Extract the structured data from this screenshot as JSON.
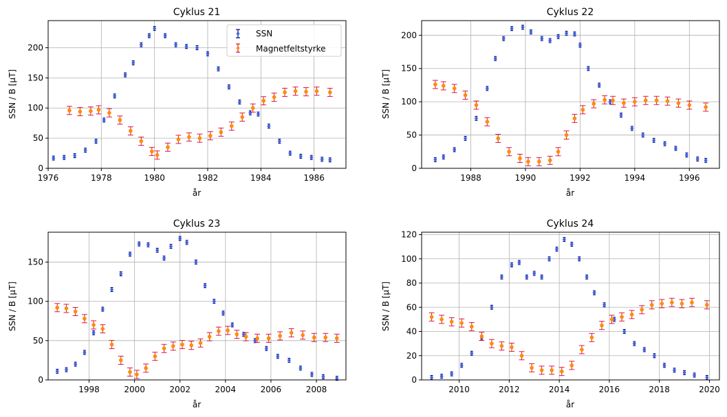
{
  "colors": {
    "ssn": "#4169e1",
    "ssn_err": "#000080",
    "mag": "#ff8c00",
    "mag_err": "#dc143c",
    "grid": "#b0b0b0"
  },
  "legend": {
    "placement": "top-right",
    "entries": [
      "SSN",
      "Magnetfeltstyrke"
    ]
  },
  "chart_data": [
    {
      "type": "scatter",
      "title": "Cyklus 21",
      "xlabel": "år",
      "ylabel": "SSN / B [μT]",
      "xlim": [
        1976.0,
        1987.2
      ],
      "ylim": [
        0,
        245
      ],
      "xticks": [
        1976,
        1978,
        1980,
        1982,
        1984,
        1986
      ],
      "yticks": [
        0,
        50,
        100,
        150,
        200
      ],
      "grid": true,
      "legend": true,
      "series": [
        {
          "name": "SSN",
          "key": "ssn",
          "x": [
            1976.2,
            1976.6,
            1977.0,
            1977.4,
            1977.8,
            1978.1,
            1978.5,
            1978.9,
            1979.2,
            1979.5,
            1979.8,
            1980.0,
            1980.4,
            1980.8,
            1981.2,
            1981.6,
            1982.0,
            1982.4,
            1982.8,
            1983.2,
            1983.6,
            1983.9,
            1984.3,
            1984.7,
            1985.1,
            1985.5,
            1985.9,
            1986.3,
            1986.6
          ],
          "y": [
            17,
            18,
            21,
            30,
            45,
            80,
            120,
            155,
            175,
            205,
            220,
            232,
            220,
            205,
            202,
            200,
            190,
            165,
            135,
            110,
            92,
            90,
            70,
            45,
            25,
            20,
            18,
            15,
            14
          ]
        },
        {
          "name": "Magnetfeltstyrke",
          "key": "mag",
          "x": [
            1976.8,
            1977.2,
            1977.6,
            1977.9,
            1978.3,
            1978.7,
            1979.1,
            1979.5,
            1979.9,
            1980.1,
            1980.5,
            1980.9,
            1981.3,
            1981.7,
            1982.1,
            1982.5,
            1982.9,
            1983.3,
            1983.7,
            1984.1,
            1984.5,
            1984.9,
            1985.3,
            1985.7,
            1986.1,
            1986.6
          ],
          "y": [
            96,
            94,
            95,
            97,
            92,
            80,
            62,
            45,
            28,
            22,
            35,
            48,
            52,
            50,
            54,
            60,
            70,
            85,
            100,
            112,
            118,
            126,
            128,
            127,
            128,
            126
          ]
        }
      ]
    },
    {
      "type": "scatter",
      "title": "Cyklus 22",
      "xlabel": "år",
      "ylabel": "SSN / B [μT]",
      "xlim": [
        1986.2,
        1997.1
      ],
      "ylim": [
        0,
        222
      ],
      "xticks": [
        1988,
        1990,
        1992,
        1994,
        1996
      ],
      "yticks": [
        0,
        50,
        100,
        150,
        200
      ],
      "grid": true,
      "legend": false,
      "series": [
        {
          "name": "SSN",
          "key": "ssn",
          "x": [
            1986.7,
            1987.0,
            1987.4,
            1987.8,
            1988.2,
            1988.6,
            1988.9,
            1989.2,
            1989.5,
            1989.9,
            1990.2,
            1990.6,
            1990.9,
            1991.2,
            1991.5,
            1991.8,
            1992.0,
            1992.3,
            1992.7,
            1993.1,
            1993.5,
            1993.9,
            1994.3,
            1994.7,
            1995.1,
            1995.5,
            1995.9,
            1996.3,
            1996.6
          ],
          "y": [
            13,
            17,
            28,
            45,
            75,
            120,
            165,
            195,
            210,
            212,
            205,
            195,
            192,
            198,
            203,
            202,
            185,
            150,
            125,
            100,
            80,
            60,
            50,
            42,
            37,
            30,
            20,
            14,
            12
          ]
        },
        {
          "name": "Magnetfeltstyrke",
          "key": "mag",
          "x": [
            1986.7,
            1987.0,
            1987.4,
            1987.8,
            1988.2,
            1988.6,
            1989.0,
            1989.4,
            1989.8,
            1990.1,
            1990.5,
            1990.9,
            1991.2,
            1991.5,
            1991.8,
            1992.1,
            1992.5,
            1992.9,
            1993.2,
            1993.6,
            1994.0,
            1994.4,
            1994.8,
            1995.2,
            1995.6,
            1996.0,
            1996.6
          ],
          "y": [
            126,
            124,
            120,
            110,
            95,
            70,
            45,
            25,
            15,
            10,
            10,
            12,
            25,
            50,
            75,
            88,
            97,
            103,
            102,
            98,
            100,
            102,
            102,
            101,
            98,
            95,
            92
          ]
        }
      ]
    },
    {
      "type": "scatter",
      "title": "Cyklus 23",
      "xlabel": "år",
      "ylabel": "SSN / B [μT]",
      "xlim": [
        1996.2,
        2009.3
      ],
      "ylim": [
        0,
        188
      ],
      "xticks": [
        1998,
        2000,
        2002,
        2004,
        2006,
        2008
      ],
      "yticks": [
        0,
        50,
        100,
        150
      ],
      "grid": true,
      "legend": false,
      "series": [
        {
          "name": "SSN",
          "key": "ssn",
          "x": [
            1996.6,
            1997.0,
            1997.4,
            1997.8,
            1998.2,
            1998.6,
            1999.0,
            1999.4,
            1999.8,
            2000.2,
            2000.6,
            2001.0,
            2001.3,
            2001.6,
            2002.0,
            2002.3,
            2002.7,
            2003.1,
            2003.5,
            2003.9,
            2004.3,
            2004.8,
            2005.3,
            2005.8,
            2006.3,
            2006.8,
            2007.3,
            2007.8,
            2008.3,
            2008.9
          ],
          "y": [
            11,
            13,
            20,
            35,
            60,
            90,
            115,
            135,
            160,
            173,
            172,
            165,
            155,
            170,
            180,
            175,
            150,
            120,
            100,
            85,
            70,
            58,
            50,
            40,
            30,
            25,
            15,
            7,
            4,
            2
          ]
        },
        {
          "name": "Magnetfeltstyrke",
          "key": "mag",
          "x": [
            1996.6,
            1997.0,
            1997.4,
            1997.8,
            1998.2,
            1998.6,
            1999.0,
            1999.4,
            1999.8,
            2000.1,
            2000.5,
            2000.9,
            2001.3,
            2001.7,
            2002.1,
            2002.5,
            2002.9,
            2003.3,
            2003.7,
            2004.1,
            2004.5,
            2004.9,
            2005.4,
            2005.9,
            2006.4,
            2006.9,
            2007.4,
            2007.9,
            2008.4,
            2008.9
          ],
          "y": [
            92,
            91,
            87,
            78,
            70,
            65,
            45,
            25,
            10,
            7,
            15,
            30,
            40,
            43,
            45,
            44,
            47,
            55,
            62,
            63,
            58,
            55,
            53,
            53,
            56,
            60,
            57,
            54,
            54,
            53
          ]
        }
      ]
    },
    {
      "type": "scatter",
      "title": "Cyklus 24",
      "xlabel": "år",
      "ylabel": "SSN / B [μT]",
      "xlim": [
        2008.5,
        2020.4
      ],
      "ylim": [
        0,
        122
      ],
      "xticks": [
        2010,
        2012,
        2014,
        2016,
        2018,
        2020
      ],
      "yticks": [
        0,
        20,
        40,
        60,
        80,
        100,
        120
      ],
      "grid": true,
      "legend": false,
      "series": [
        {
          "name": "SSN",
          "key": "ssn",
          "x": [
            2008.9,
            2009.3,
            2009.7,
            2010.1,
            2010.5,
            2010.9,
            2011.3,
            2011.7,
            2012.1,
            2012.4,
            2012.7,
            2013.0,
            2013.3,
            2013.6,
            2013.9,
            2014.2,
            2014.5,
            2014.8,
            2015.1,
            2015.4,
            2015.8,
            2016.2,
            2016.6,
            2017.0,
            2017.4,
            2017.8,
            2018.2,
            2018.6,
            2019.0,
            2019.4,
            2019.9
          ],
          "y": [
            2,
            3,
            5,
            12,
            22,
            35,
            60,
            85,
            95,
            97,
            85,
            88,
            85,
            100,
            108,
            116,
            112,
            100,
            85,
            72,
            62,
            50,
            40,
            30,
            25,
            20,
            12,
            8,
            6,
            4,
            2
          ]
        },
        {
          "name": "Magnetfeltstyrke",
          "key": "mag",
          "x": [
            2008.9,
            2009.3,
            2009.7,
            2010.1,
            2010.5,
            2010.9,
            2011.3,
            2011.7,
            2012.1,
            2012.5,
            2012.9,
            2013.3,
            2013.7,
            2014.1,
            2014.5,
            2014.9,
            2015.3,
            2015.7,
            2016.1,
            2016.5,
            2016.9,
            2017.3,
            2017.7,
            2018.1,
            2018.5,
            2018.9,
            2019.3,
            2019.9
          ],
          "y": [
            52,
            50,
            48,
            47,
            44,
            36,
            30,
            28,
            27,
            20,
            10,
            8,
            8,
            7,
            12,
            25,
            35,
            45,
            50,
            52,
            54,
            58,
            62,
            63,
            64,
            63,
            64,
            62
          ]
        }
      ]
    }
  ]
}
